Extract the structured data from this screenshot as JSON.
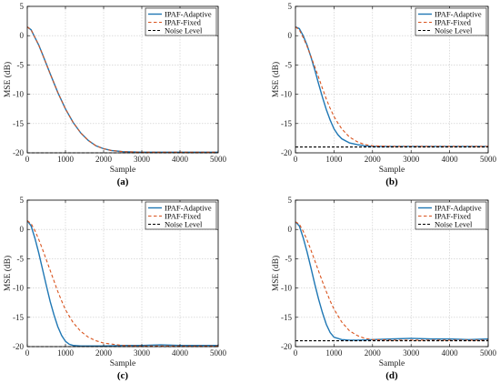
{
  "chart_data": [
    {
      "type": "line",
      "panel_label": "(a)",
      "xlabel": "Sample",
      "ylabel": "MSE (dB)",
      "xlim": [
        0,
        5000
      ],
      "ylim": [
        -20,
        5
      ],
      "xticks": [
        "0",
        "1000",
        "2000",
        "3000",
        "4000",
        "5000"
      ],
      "yticks": [
        "5",
        "0",
        "-5",
        "-10",
        "-15",
        "-20"
      ],
      "grid": true,
      "legend_position": "top-right",
      "noise_level": -20,
      "series": [
        {
          "name": "IPAF-Adaptive",
          "color": "#1f77b4",
          "dash": "solid",
          "x": [
            0,
            100,
            200,
            300,
            400,
            600,
            800,
            1000,
            1200,
            1400,
            1600,
            1800,
            2000,
            2200,
            2500,
            3000,
            3500,
            4000,
            4500,
            5000
          ],
          "y": [
            1.5,
            1.0,
            -0.3,
            -1.6,
            -3.2,
            -6.5,
            -9.7,
            -12.5,
            -14.8,
            -16.6,
            -17.9,
            -18.8,
            -19.3,
            -19.6,
            -19.8,
            -19.9,
            -19.9,
            -19.9,
            -19.9,
            -19.9
          ]
        },
        {
          "name": "IPAF-Fixed",
          "color": "#d9541e",
          "dash": "dashed",
          "x": [
            0,
            100,
            200,
            300,
            400,
            600,
            800,
            1000,
            1200,
            1400,
            1600,
            1800,
            2000,
            2200,
            2500,
            3000,
            3500,
            4000,
            4500,
            5000
          ],
          "y": [
            1.5,
            1.0,
            -0.3,
            -1.6,
            -3.2,
            -6.5,
            -9.7,
            -12.5,
            -14.8,
            -16.6,
            -17.9,
            -18.8,
            -19.3,
            -19.6,
            -19.8,
            -19.9,
            -19.9,
            -19.9,
            -19.9,
            -19.9
          ]
        },
        {
          "name": "Noise Level",
          "color": "#000000",
          "dash": "dashed",
          "x": [
            0,
            5000
          ],
          "y": [
            -20,
            -20
          ]
        }
      ]
    },
    {
      "type": "line",
      "panel_label": "(b)",
      "xlabel": "Sample",
      "ylabel": "MSE (dB)",
      "xlim": [
        0,
        5000
      ],
      "ylim": [
        -20,
        5
      ],
      "xticks": [
        "0",
        "1000",
        "2000",
        "3000",
        "4000",
        "5000"
      ],
      "yticks": [
        "5",
        "0",
        "-5",
        "-10",
        "-15",
        "-20"
      ],
      "grid": true,
      "legend_position": "top-right",
      "noise_level": -19,
      "series": [
        {
          "name": "IPAF-Adaptive",
          "color": "#1f77b4",
          "dash": "solid",
          "x": [
            0,
            100,
            200,
            300,
            400,
            500,
            600,
            700,
            800,
            900,
            1000,
            1100,
            1200,
            1400,
            1600,
            1800,
            2000,
            2500,
            3000,
            3500,
            4000,
            4500,
            5000
          ],
          "y": [
            1.5,
            1.2,
            0.0,
            -1.6,
            -3.6,
            -5.8,
            -8.2,
            -10.5,
            -12.6,
            -14.4,
            -15.9,
            -16.9,
            -17.6,
            -18.3,
            -18.6,
            -18.8,
            -18.9,
            -18.9,
            -18.9,
            -18.9,
            -18.9,
            -18.9,
            -18.9
          ]
        },
        {
          "name": "IPAF-Fixed",
          "color": "#d9541e",
          "dash": "dashed",
          "x": [
            0,
            100,
            200,
            300,
            400,
            500,
            600,
            700,
            800,
            900,
            1000,
            1100,
            1200,
            1400,
            1600,
            1800,
            2000,
            2500,
            3000,
            3500,
            4000,
            4500,
            5000
          ],
          "y": [
            1.5,
            1.0,
            -0.3,
            -1.8,
            -3.5,
            -5.3,
            -7.1,
            -9.0,
            -10.8,
            -12.4,
            -13.8,
            -14.9,
            -15.9,
            -17.3,
            -18.1,
            -18.6,
            -18.8,
            -18.9,
            -18.9,
            -18.9,
            -18.9,
            -18.9,
            -18.9
          ]
        },
        {
          "name": "Noise Level",
          "color": "#000000",
          "dash": "dashed",
          "x": [
            0,
            5000
          ],
          "y": [
            -19,
            -19
          ]
        }
      ]
    },
    {
      "type": "line",
      "panel_label": "(c)",
      "xlabel": "Sample",
      "ylabel": "MSE (dB)",
      "xlim": [
        0,
        5000
      ],
      "ylim": [
        -20,
        5
      ],
      "xticks": [
        "0",
        "1000",
        "2000",
        "3000",
        "4000",
        "5000"
      ],
      "yticks": [
        "5",
        "0",
        "-5",
        "-10",
        "-15",
        "-20"
      ],
      "grid": true,
      "legend_position": "top-right",
      "noise_level": -20,
      "series": [
        {
          "name": "IPAF-Adaptive",
          "color": "#1f77b4",
          "dash": "solid",
          "x": [
            0,
            100,
            200,
            300,
            400,
            500,
            600,
            700,
            800,
            900,
            1000,
            1100,
            1200,
            1400,
            1600,
            2000,
            2500,
            3000,
            3500,
            4000,
            4500,
            5000
          ],
          "y": [
            1.5,
            0.6,
            -1.5,
            -4.0,
            -6.8,
            -9.6,
            -12.3,
            -14.6,
            -16.6,
            -18.1,
            -19.1,
            -19.6,
            -19.8,
            -19.9,
            -19.9,
            -19.9,
            -19.8,
            -19.8,
            -19.7,
            -19.8,
            -19.8,
            -19.8
          ]
        },
        {
          "name": "IPAF-Fixed",
          "color": "#d9541e",
          "dash": "dashed",
          "x": [
            0,
            100,
            200,
            300,
            400,
            500,
            600,
            700,
            800,
            900,
            1000,
            1200,
            1400,
            1600,
            1800,
            2000,
            2500,
            3000,
            3500,
            4000,
            4500,
            5000
          ],
          "y": [
            1.5,
            1.0,
            -0.2,
            -1.7,
            -3.4,
            -5.2,
            -7.0,
            -8.8,
            -10.6,
            -12.2,
            -13.7,
            -15.9,
            -17.4,
            -18.4,
            -19.0,
            -19.4,
            -19.8,
            -19.9,
            -19.9,
            -19.9,
            -19.9,
            -19.9
          ]
        },
        {
          "name": "Noise Level",
          "color": "#000000",
          "dash": "dashed",
          "x": [
            0,
            5000
          ],
          "y": [
            -20,
            -20
          ]
        }
      ]
    },
    {
      "type": "line",
      "panel_label": "(d)",
      "xlabel": "Sample",
      "ylabel": "MSE (dB)",
      "xlim": [
        0,
        5000
      ],
      "ylim": [
        -20,
        5
      ],
      "xticks": [
        "0",
        "1000",
        "2000",
        "3000",
        "4000",
        "5000"
      ],
      "yticks": [
        "5",
        "0",
        "-5",
        "-10",
        "-15",
        "-20"
      ],
      "grid": true,
      "legend_position": "top-right",
      "noise_level": -19,
      "series": [
        {
          "name": "IPAF-Adaptive",
          "color": "#1f77b4",
          "dash": "solid",
          "x": [
            0,
            100,
            200,
            300,
            400,
            500,
            600,
            700,
            800,
            900,
            1000,
            1200,
            1400,
            1600,
            2000,
            2500,
            3000,
            3500,
            4000,
            4500,
            5000
          ],
          "y": [
            1.3,
            0.6,
            -1.4,
            -3.8,
            -6.5,
            -9.3,
            -11.9,
            -14.2,
            -16.2,
            -17.6,
            -18.4,
            -18.8,
            -18.9,
            -18.9,
            -18.8,
            -18.7,
            -18.6,
            -18.7,
            -18.7,
            -18.8,
            -18.7
          ]
        },
        {
          "name": "IPAF-Fixed",
          "color": "#d9541e",
          "dash": "dashed",
          "x": [
            0,
            100,
            200,
            300,
            400,
            500,
            600,
            700,
            800,
            900,
            1000,
            1200,
            1400,
            1600,
            1800,
            2000,
            2500,
            3000,
            3500,
            4000,
            4500,
            5000
          ],
          "y": [
            1.3,
            0.9,
            -0.3,
            -1.8,
            -3.5,
            -5.3,
            -7.1,
            -8.9,
            -10.6,
            -12.2,
            -13.6,
            -15.8,
            -17.3,
            -18.1,
            -18.6,
            -18.8,
            -18.9,
            -18.9,
            -18.9,
            -18.9,
            -18.9,
            -18.9
          ]
        },
        {
          "name": "Noise Level",
          "color": "#000000",
          "dash": "dashed",
          "x": [
            0,
            5000
          ],
          "y": [
            -19,
            -19
          ]
        }
      ]
    }
  ]
}
